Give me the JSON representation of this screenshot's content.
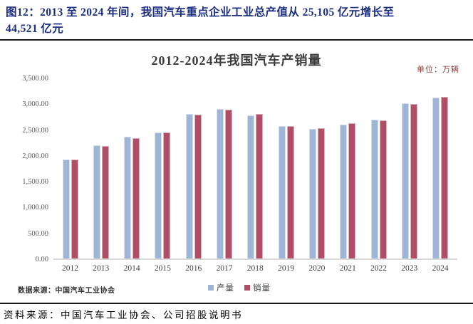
{
  "figure_header": {
    "line1": "图12：2013 至 2024 年间，我国汽车重点企业工业总产值从 25,105 亿元增长至",
    "line2": "44,521 亿元"
  },
  "chart": {
    "title": "2012-2024年我国汽车产销量",
    "unit_label": "单位：万辆",
    "data_source": "数据来源：中国汽车工业协会"
  },
  "chart_data": {
    "type": "bar",
    "title": "2012-2024年我国汽车产销量",
    "unit": "万辆",
    "categories": [
      "2012",
      "2013",
      "2014",
      "2015",
      "2016",
      "2017",
      "2018",
      "2019",
      "2020",
      "2021",
      "2022",
      "2023",
      "2024"
    ],
    "series": [
      {
        "name": "产量",
        "name_en": "production",
        "color": "#9FB5D6",
        "values": [
          1927,
          2212,
          2372,
          2450,
          2812,
          2902,
          2781,
          2572,
          2523,
          2608,
          2702,
          3016,
          3128
        ]
      },
      {
        "name": "销量",
        "name_en": "sales",
        "color": "#AF4E66",
        "values": [
          1931,
          2198,
          2349,
          2460,
          2803,
          2888,
          2808,
          2577,
          2531,
          2628,
          2686,
          3009,
          3144
        ]
      }
    ],
    "ylim": [
      0,
      3500
    ],
    "ytick_values": [
      0,
      500,
      1000,
      1500,
      2000,
      2500,
      3000,
      3500
    ],
    "ytick_labels": [
      "0.00",
      "500.00",
      "1,000.00",
      "1,500.00",
      "2,000.00",
      "2,500.00",
      "3,000.00",
      "3,500.00"
    ],
    "grid": false,
    "legend_position": "bottom"
  },
  "colors": {
    "header_text": "#1b2e80",
    "axis_line": "#d9d9d9",
    "unit_text": "#8B3A3A"
  },
  "footer": {
    "source": "资料来源：中国汽车工业协会、公司招股说明书"
  }
}
